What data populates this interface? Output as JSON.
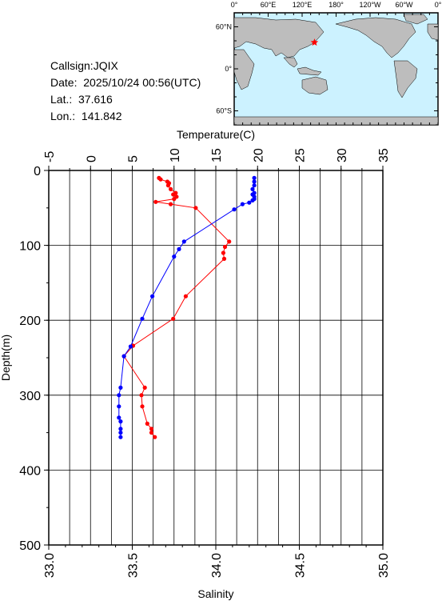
{
  "info": {
    "callsign": "Callsign:JQIX",
    "date": "Date:  2025/10/24 00:56(UTC)",
    "lat": "Lat.:  37.616",
    "lon": "Lon.:  141.842"
  },
  "map": {
    "top_labels": [
      "0°",
      "60°E",
      "120°E",
      "180°",
      "120°W",
      "60°W",
      "0°"
    ],
    "left_labels": [
      "60°N",
      "0°",
      "60°S"
    ],
    "ocean_color": "#ccf2ff",
    "land_color": "#bdbdbd",
    "marker": {
      "label": "star-marker",
      "lon": 141.842,
      "lat": 37.616,
      "color": "#ff0000"
    }
  },
  "chart_data": {
    "type": "line",
    "title": "",
    "top_axis": {
      "label": "Temperature(C)",
      "range": [
        -5,
        35
      ],
      "ticks": [
        "-5",
        "0",
        "5",
        "10",
        "15",
        "20",
        "25",
        "30",
        "35"
      ]
    },
    "bottom_axis": {
      "label": "Salinity",
      "range": [
        33.0,
        35.0
      ],
      "ticks": [
        "33.0",
        "33.5",
        "34.0",
        "34.5",
        "35.0"
      ]
    },
    "y_axis": {
      "label": "Depth(m)",
      "range": [
        0,
        500
      ],
      "inverted": true,
      "ticks": [
        "0",
        "100",
        "200",
        "300",
        "400",
        "500"
      ]
    },
    "grid": true,
    "series": [
      {
        "name": "Temperature",
        "axis": "top",
        "color": "#ff0000",
        "depth": [
          10,
          12,
          15,
          17,
          20,
          25,
          30,
          32,
          35,
          38,
          42,
          45,
          50,
          95,
          102,
          110,
          118,
          168,
          198,
          234,
          248,
          290,
          300,
          315,
          338,
          345,
          350,
          356
        ],
        "values": [
          8.2,
          8.4,
          9.2,
          9.4,
          9.3,
          9.6,
          10.2,
          9.9,
          10.3,
          10.0,
          7.8,
          9.6,
          12.6,
          16.6,
          16.1,
          15.9,
          16.0,
          11.4,
          9.9,
          5.1,
          4.0,
          6.5,
          6.1,
          6.2,
          6.8,
          7.3,
          7.3,
          7.7
        ]
      },
      {
        "name": "Salinity",
        "axis": "bottom",
        "color": "#0000ff",
        "depth": [
          10,
          15,
          20,
          25,
          30,
          32,
          35,
          38,
          40,
          43,
          45,
          52,
          95,
          105,
          115,
          168,
          198,
          235,
          248,
          290,
          300,
          315,
          330,
          335,
          345,
          350,
          356
        ],
        "values": [
          34.23,
          34.23,
          34.23,
          34.22,
          34.23,
          34.22,
          34.23,
          34.23,
          34.22,
          34.2,
          34.16,
          34.11,
          33.81,
          33.78,
          33.75,
          33.62,
          33.56,
          33.49,
          33.45,
          33.43,
          33.42,
          33.42,
          33.42,
          33.43,
          33.43,
          33.43,
          33.43
        ]
      }
    ]
  }
}
